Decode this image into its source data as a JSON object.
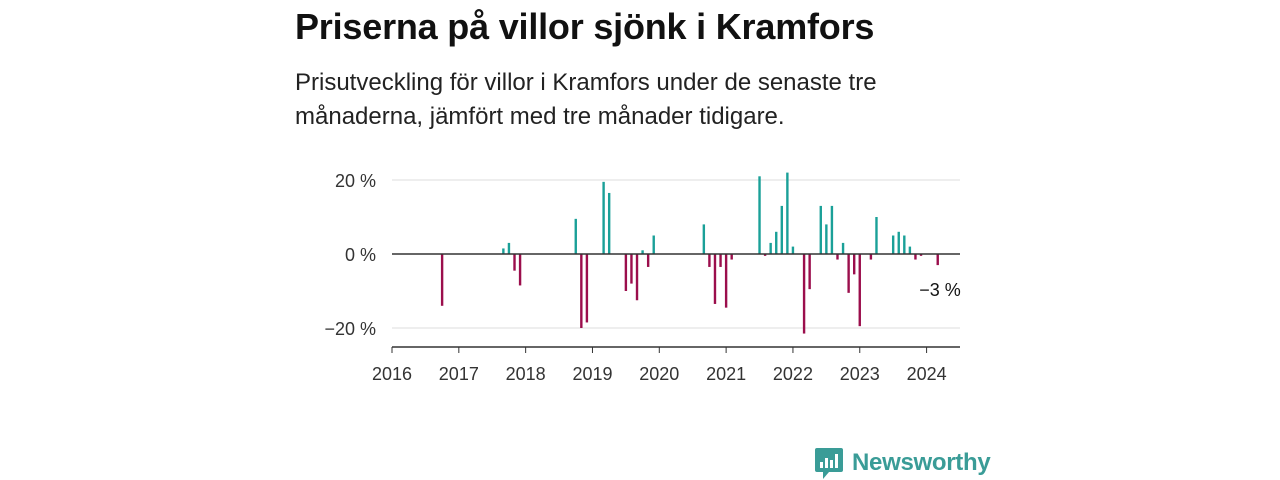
{
  "title": "Priserna på villor sjönk i Kramfors",
  "subtitle": "Prisutveckling för villor i Kramfors under de senaste tre månaderna, jämfört med tre månader tidigare.",
  "brand": "Newsworthy",
  "colors": {
    "positive": "#1aa098",
    "negative": "#9b0e4c",
    "axis": "#333333",
    "grid": "#dddddd",
    "brand": "#3a9c97"
  },
  "chart_data": {
    "type": "bar",
    "title": "",
    "xlabel": "",
    "ylabel": "",
    "ylim": [
      -25,
      25
    ],
    "xlim": [
      "2016-01",
      "2024-07"
    ],
    "yticks": [
      20,
      0,
      -20
    ],
    "ytick_labels": [
      "20 %",
      "0 %",
      "−20 %"
    ],
    "xtick_labels": [
      "2016",
      "2017",
      "2018",
      "2019",
      "2020",
      "2021",
      "2022",
      "2023",
      "2024"
    ],
    "grid": true,
    "annotation": {
      "label": "−3 %",
      "x": "2024-03",
      "value": -3
    },
    "series": [
      {
        "x": [
          "2016-10",
          "2017-09",
          "2017-10",
          "2017-11",
          "2017-12",
          "2018-10",
          "2018-11",
          "2018-12",
          "2019-03",
          "2019-04",
          "2019-07",
          "2019-08",
          "2019-09",
          "2019-10",
          "2019-11",
          "2019-12",
          "2020-09",
          "2020-10",
          "2020-11",
          "2020-12",
          "2021-01",
          "2021-02",
          "2021-07",
          "2021-08",
          "2021-09",
          "2021-10",
          "2021-11",
          "2021-12",
          "2022-01",
          "2022-03",
          "2022-04",
          "2022-06",
          "2022-07",
          "2022-08",
          "2022-09",
          "2022-10",
          "2022-11",
          "2022-12",
          "2023-01",
          "2023-03",
          "2023-04",
          "2023-07",
          "2023-08",
          "2023-09",
          "2023-10",
          "2023-11",
          "2023-12",
          "2024-03"
        ],
        "values": [
          -14,
          1.5,
          3,
          -4.5,
          -8.5,
          9.5,
          -20,
          -18.5,
          19.5,
          16.5,
          -10,
          -8,
          -12.5,
          1,
          -3.5,
          5,
          8,
          -3.5,
          -13.5,
          -3.5,
          -14.5,
          -1.5,
          21,
          -0.5,
          3,
          6,
          13,
          22,
          2,
          -21.5,
          -9.5,
          13,
          8,
          13,
          -1.5,
          3,
          -10.5,
          -5.5,
          -19.5,
          -1.5,
          10,
          5,
          6,
          5,
          2,
          -1.5,
          -0.5,
          -3
        ]
      }
    ]
  }
}
